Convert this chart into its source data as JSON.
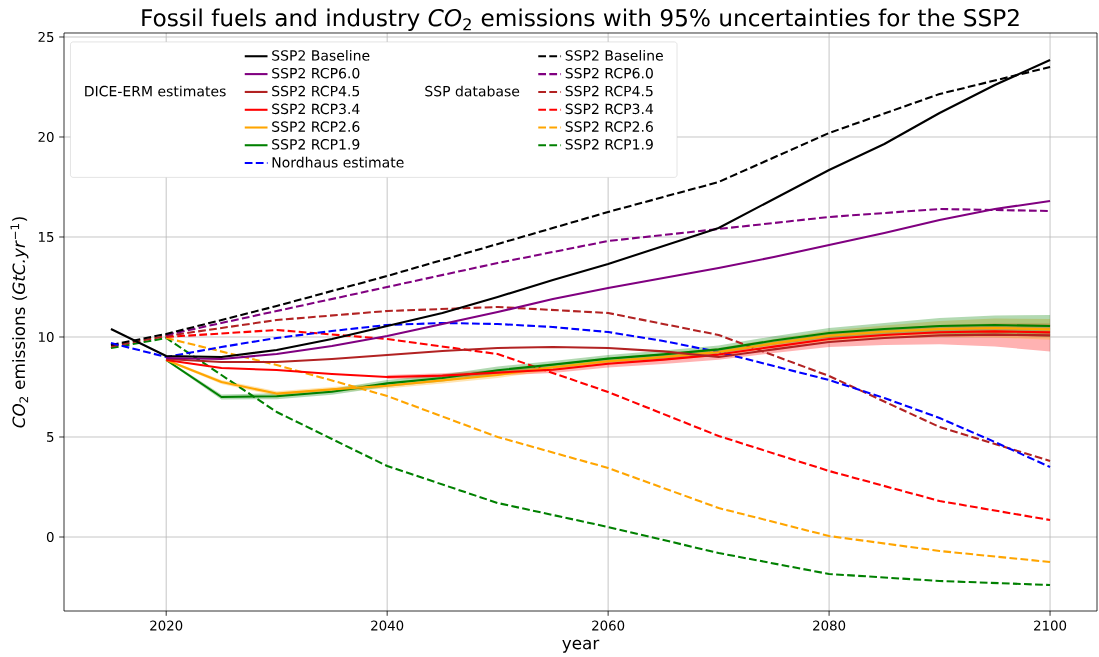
{
  "chart_data": {
    "type": "line",
    "title": "Fossil fuels and industry *CO*$_{2}$ emissions with 95% uncertainties for the SSP2",
    "xlabel": "year",
    "ylabel": "*CO*$_{2}$ emissions (*GtC.yr*$^{−1}$)",
    "annotations": [
      "DICE-ERM estimates",
      "SSP database"
    ],
    "xlim": [
      2010.75,
      2104.25
    ],
    "ylim": [
      -3.7,
      25.2
    ],
    "xticks": [
      2020,
      2040,
      2060,
      2080,
      2100
    ],
    "yticks": [
      0,
      5,
      10,
      15,
      20,
      25
    ],
    "grid": true,
    "legend": "top left",
    "series": [
      {
        "name": "SSP2 Baseline",
        "color": "#000000",
        "line_style": "solid",
        "x": [
          2015,
          2020,
          2025,
          2030,
          2035,
          2040,
          2045,
          2050,
          2055,
          2060,
          2065,
          2070,
          2075,
          2080,
          2085,
          2090,
          2095,
          2100
        ],
        "values": [
          10.4,
          9.05,
          9.0,
          9.35,
          9.9,
          10.55,
          11.2,
          12.0,
          12.85,
          13.65,
          14.55,
          15.45,
          16.9,
          18.35,
          19.65,
          21.2,
          22.6,
          23.85
        ]
      },
      {
        "name": "SSP2 RCP6.0",
        "color": "#800080",
        "line_style": "solid",
        "x": [
          2020,
          2025,
          2030,
          2035,
          2040,
          2045,
          2050,
          2055,
          2060,
          2065,
          2070,
          2075,
          2080,
          2085,
          2090,
          2095,
          2100
        ],
        "values": [
          8.95,
          8.9,
          9.15,
          9.55,
          10.05,
          10.65,
          11.25,
          11.9,
          12.45,
          12.95,
          13.45,
          14.0,
          14.6,
          15.2,
          15.85,
          16.4,
          16.8
        ]
      },
      {
        "name": "SSP2 RCP4.5",
        "color": "#b22222",
        "line_style": "solid",
        "x": [
          2020,
          2025,
          2030,
          2035,
          2040,
          2045,
          2050,
          2055,
          2060,
          2065,
          2070,
          2075,
          2080,
          2085,
          2090,
          2095,
          2100
        ],
        "values": [
          8.9,
          8.75,
          8.75,
          8.9,
          9.1,
          9.3,
          9.45,
          9.5,
          9.45,
          9.28,
          9.0,
          9.38,
          9.75,
          9.95,
          10.08,
          10.12,
          10.08
        ]
      },
      {
        "name": "SSP2 RCP3.4",
        "color": "#ff0000",
        "line_style": "solid",
        "x": [
          2020,
          2025,
          2030,
          2035,
          2040,
          2045,
          2050,
          2055,
          2060,
          2065,
          2070,
          2075,
          2080,
          2085,
          2090,
          2095,
          2100
        ],
        "values": [
          8.85,
          8.45,
          8.35,
          8.15,
          8.0,
          8.07,
          8.22,
          8.36,
          8.66,
          8.87,
          9.12,
          9.52,
          9.9,
          10.1,
          10.24,
          10.28,
          10.23
        ],
        "lower": [
          null,
          null,
          null,
          null,
          7.9,
          7.95,
          8.08,
          8.2,
          8.48,
          8.65,
          8.86,
          9.2,
          9.5,
          9.6,
          9.64,
          9.53,
          9.27
        ],
        "upper": [
          null,
          null,
          null,
          null,
          8.1,
          8.19,
          8.36,
          8.52,
          8.84,
          9.07,
          9.34,
          9.77,
          10.18,
          10.42,
          10.6,
          10.68,
          10.68
        ]
      },
      {
        "name": "SSP2 RCP2.6",
        "color": "#ffa500",
        "line_style": "solid",
        "x": [
          2020,
          2025,
          2030,
          2035,
          2040,
          2045,
          2050,
          2055,
          2060,
          2065,
          2070,
          2075,
          2080,
          2085,
          2090,
          2095,
          2100
        ],
        "values": [
          8.85,
          7.75,
          7.17,
          7.38,
          7.56,
          7.83,
          8.1,
          8.49,
          8.79,
          9.0,
          9.25,
          9.68,
          10.06,
          10.26,
          10.4,
          10.45,
          10.38
        ],
        "lower": [
          8.8,
          7.65,
          7.05,
          7.26,
          7.42,
          7.68,
          7.95,
          8.33,
          8.62,
          8.82,
          9.05,
          9.46,
          9.8,
          9.94,
          10.0,
          9.98,
          9.86
        ],
        "upper": [
          8.9,
          7.85,
          7.29,
          7.5,
          7.7,
          7.98,
          8.25,
          8.65,
          8.96,
          9.18,
          9.45,
          9.9,
          10.32,
          10.58,
          10.8,
          10.92,
          10.9
        ]
      },
      {
        "name": "SSP2 RCP1.9",
        "color": "#008000",
        "line_style": "solid",
        "x": [
          2020,
          2025,
          2030,
          2035,
          2040,
          2045,
          2050,
          2055,
          2060,
          2065,
          2070,
          2075,
          2080,
          2085,
          2090,
          2095,
          2100
        ],
        "values": [
          8.85,
          7.0,
          7.04,
          7.26,
          7.68,
          7.95,
          8.34,
          8.62,
          8.92,
          9.13,
          9.38,
          9.82,
          10.2,
          10.4,
          10.55,
          10.6,
          10.55
        ],
        "lower": [
          8.8,
          6.88,
          6.89,
          7.11,
          7.51,
          7.78,
          8.16,
          8.44,
          8.74,
          8.93,
          9.18,
          9.6,
          9.95,
          10.1,
          10.15,
          10.12,
          10.0
        ],
        "upper": [
          8.9,
          7.12,
          7.19,
          7.41,
          7.85,
          8.12,
          8.52,
          8.8,
          9.1,
          9.33,
          9.58,
          10.04,
          10.45,
          10.7,
          10.95,
          11.08,
          11.1
        ]
      },
      {
        "name": "Nordhaus estimate",
        "color": "#0000ff",
        "line_style": "dashed",
        "x": [
          2015,
          2020,
          2025,
          2030,
          2035,
          2040,
          2045,
          2050,
          2055,
          2060,
          2065,
          2070,
          2075,
          2080,
          2085,
          2090,
          2095,
          2100
        ],
        "values": [
          9.7,
          9.0,
          9.5,
          9.95,
          10.3,
          10.6,
          10.7,
          10.65,
          10.5,
          10.25,
          9.8,
          9.25,
          8.55,
          7.85,
          6.95,
          5.95,
          4.75,
          3.5
        ]
      },
      {
        "name": "SSP2 Baseline",
        "color": "#000000",
        "line_style": "dashed",
        "x": [
          2015,
          2020,
          2030,
          2040,
          2050,
          2060,
          2070,
          2080,
          2090,
          2100
        ],
        "values": [
          9.6,
          10.15,
          11.55,
          13.05,
          14.65,
          16.25,
          17.75,
          20.2,
          22.15,
          23.5
        ]
      },
      {
        "name": "SSP2 RCP6.0",
        "color": "#800080",
        "line_style": "dashed",
        "x": [
          2020,
          2030,
          2040,
          2050,
          2060,
          2070,
          2080,
          2090,
          2100
        ],
        "values": [
          10.1,
          11.3,
          12.5,
          13.7,
          14.8,
          15.4,
          16.0,
          16.4,
          16.3
        ]
      },
      {
        "name": "SSP2 RCP4.5",
        "color": "#b22222",
        "line_style": "dashed",
        "x": [
          2015,
          2020,
          2030,
          2040,
          2050,
          2060,
          2070,
          2080,
          2090,
          2100
        ],
        "values": [
          9.53,
          10.05,
          10.85,
          11.3,
          11.5,
          11.2,
          10.1,
          8.05,
          5.5,
          3.8
        ]
      },
      {
        "name": "SSP2 RCP3.4",
        "color": "#ff0000",
        "line_style": "dashed",
        "x": [
          2020,
          2030,
          2040,
          2050,
          2060,
          2070,
          2080,
          2090,
          2100
        ],
        "values": [
          10.0,
          10.35,
          9.9,
          9.15,
          7.25,
          5.05,
          3.3,
          1.8,
          0.85
        ]
      },
      {
        "name": "SSP2 RCP2.6",
        "color": "#ffa500",
        "line_style": "dashed",
        "x": [
          2020,
          2030,
          2040,
          2050,
          2060,
          2070,
          2080,
          2090,
          2100
        ],
        "values": [
          9.95,
          8.6,
          7.05,
          5.0,
          3.45,
          1.45,
          0.05,
          -0.7,
          -1.25
        ]
      },
      {
        "name": "SSP2 RCP1.9",
        "color": "#008000",
        "line_style": "dashed",
        "x": [
          2015,
          2020,
          2030,
          2040,
          2050,
          2060,
          2070,
          2080,
          2090,
          2100
        ],
        "values": [
          9.45,
          9.95,
          6.25,
          3.55,
          1.7,
          0.5,
          -0.8,
          -1.85,
          -2.2,
          -2.4
        ]
      }
    ]
  }
}
